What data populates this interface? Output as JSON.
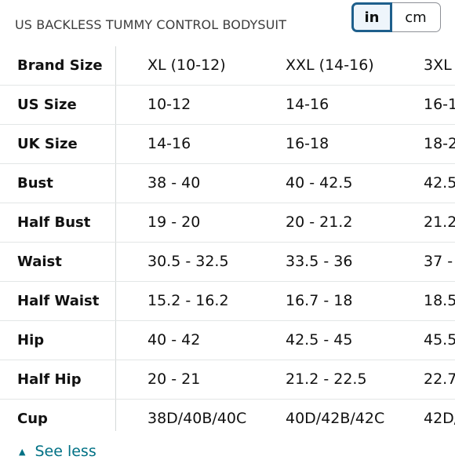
{
  "header": {
    "title": "US BACKLESS TUMMY CONTROL BODYSUIT"
  },
  "unit_toggle": {
    "options": [
      "in",
      "cm"
    ],
    "selected": "in"
  },
  "table": {
    "rows": [
      {
        "label": "Brand Size",
        "values": [
          "XL (10-12)",
          "XXL (14-16)",
          "3XL"
        ]
      },
      {
        "label": "US Size",
        "values": [
          "10-12",
          "14-16",
          "16-1"
        ]
      },
      {
        "label": "UK Size",
        "values": [
          "14-16",
          "16-18",
          "18-2"
        ]
      },
      {
        "label": "Bust",
        "values": [
          "38 - 40",
          "40 - 42.5",
          "42.5"
        ]
      },
      {
        "label": "Half Bust",
        "values": [
          "19 - 20",
          "20 - 21.2",
          "21.2"
        ]
      },
      {
        "label": "Waist",
        "values": [
          "30.5 - 32.5",
          "33.5 - 36",
          "37 -"
        ]
      },
      {
        "label": "Half Waist",
        "values": [
          "15.2 - 16.2",
          "16.7 - 18",
          "18.5"
        ]
      },
      {
        "label": "Hip",
        "values": [
          "40 - 42",
          "42.5 - 45",
          "45.5"
        ]
      },
      {
        "label": "Half Hip",
        "values": [
          "20 - 21",
          "21.2 - 22.5",
          "22.7"
        ]
      },
      {
        "label": "Cup",
        "values": [
          "38D/40B/40C",
          "40D/42B/42C",
          "42D/"
        ]
      }
    ]
  },
  "footer": {
    "see_less_label": "See less",
    "see_less_icon": "caret-up-icon"
  },
  "colors": {
    "selected_border": "#1e5f8c",
    "link": "#007185"
  }
}
